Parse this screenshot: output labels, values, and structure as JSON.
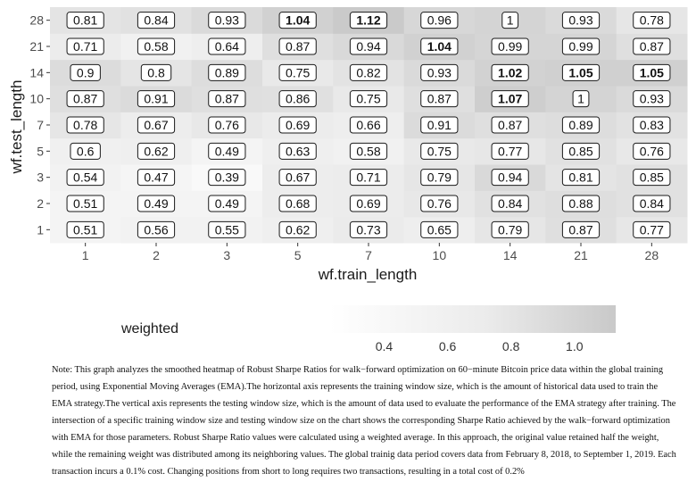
{
  "chart_data": {
    "type": "heatmap",
    "xlabel": "wf.train_length",
    "ylabel": "wf.test_length",
    "x_categories": [
      "1",
      "2",
      "3",
      "5",
      "7",
      "10",
      "14",
      "21",
      "28"
    ],
    "y_categories": [
      "1",
      "2",
      "3",
      "5",
      "7",
      "10",
      "14",
      "21",
      "28"
    ],
    "values": [
      [
        0.51,
        0.56,
        0.55,
        0.62,
        0.73,
        0.65,
        0.79,
        0.87,
        0.77
      ],
      [
        0.51,
        0.49,
        0.49,
        0.68,
        0.69,
        0.76,
        0.84,
        0.88,
        0.84
      ],
      [
        0.54,
        0.47,
        0.39,
        0.67,
        0.71,
        0.79,
        0.94,
        0.81,
        0.85
      ],
      [
        0.6,
        0.62,
        0.49,
        0.63,
        0.58,
        0.75,
        0.77,
        0.85,
        0.76
      ],
      [
        0.78,
        0.67,
        0.76,
        0.69,
        0.66,
        0.91,
        0.87,
        0.89,
        0.83
      ],
      [
        0.87,
        0.91,
        0.87,
        0.86,
        0.75,
        0.87,
        1.07,
        1,
        0.93
      ],
      [
        0.9,
        0.8,
        0.89,
        0.75,
        0.82,
        0.93,
        1.02,
        1.05,
        1.05
      ],
      [
        0.71,
        0.58,
        0.64,
        0.87,
        0.94,
        1.04,
        0.99,
        0.99,
        0.87
      ],
      [
        0.81,
        0.84,
        0.93,
        1.04,
        1.12,
        0.96,
        1,
        0.93,
        0.78
      ]
    ],
    "labels": [
      [
        "0.51",
        "0.56",
        "0.55",
        "0.62",
        "0.73",
        "0.65",
        "0.79",
        "0.87",
        "0.77"
      ],
      [
        "0.51",
        "0.49",
        "0.49",
        "0.68",
        "0.69",
        "0.76",
        "0.84",
        "0.88",
        "0.84"
      ],
      [
        "0.54",
        "0.47",
        "0.39",
        "0.67",
        "0.71",
        "0.79",
        "0.94",
        "0.81",
        "0.85"
      ],
      [
        "0.6",
        "0.62",
        "0.49",
        "0.63",
        "0.58",
        "0.75",
        "0.77",
        "0.85",
        "0.76"
      ],
      [
        "0.78",
        "0.67",
        "0.76",
        "0.69",
        "0.66",
        "0.91",
        "0.87",
        "0.89",
        "0.83"
      ],
      [
        "0.87",
        "0.91",
        "0.87",
        "0.86",
        "0.75",
        "0.87",
        "1.07",
        "1",
        "0.93"
      ],
      [
        "0.9",
        "0.8",
        "0.89",
        "0.75",
        "0.82",
        "0.93",
        "1.02",
        "1.05",
        "1.05"
      ],
      [
        "0.71",
        "0.58",
        "0.64",
        "0.87",
        "0.94",
        "1.04",
        "0.99",
        "0.99",
        "0.87"
      ],
      [
        "0.81",
        "0.84",
        "0.93",
        "1.04",
        "1.12",
        "0.96",
        "1",
        "0.93",
        "0.78"
      ]
    ],
    "bold_threshold": 1.0,
    "legend": {
      "title": "weighted",
      "ticks": [
        "0.4",
        "0.6",
        "0.8",
        "1.0"
      ],
      "tick_values": [
        0.4,
        0.6,
        0.8,
        1.0
      ],
      "range": [
        0.23,
        1.13
      ],
      "placement": "bottom"
    },
    "colors": {
      "low": "#ffffff",
      "mid": "#ebebeb",
      "high": "#c9c9c9",
      "panel": "#ebebeb",
      "grid": "#ffffff"
    },
    "grid": true
  },
  "note": "Note: This graph analyzes the smoothed heatmap of Robust Sharpe Ratios for walk−forward optimization on 60−minute Bitcoin price data within the global training period, using Exponential Moving Averages (EMA).The horizontal axis represents the training window size, which is the amount of historical data used to train the EMA strategy.The vertical axis represents the testing window size, which is the amount of data used to evaluate the performance of the EMA strategy after training. The intersection of a specific training window size and testing window size on the chart shows the corresponding Sharpe Ratio achieved by the walk−forward optimization with EMA for those parameters. Robust Sharpe Ratio values were calculated using a weighted average. In this approach, the original value retained half the weight, while the remaining weight was distributed among its neighboring values. The global trainig data period covers data from February 8, 2018, to September 1, 2019. Each transaction incurs a 0.1% cost. Changing positions from short to long requires two transactions, resulting in a total cost of 0.2%"
}
